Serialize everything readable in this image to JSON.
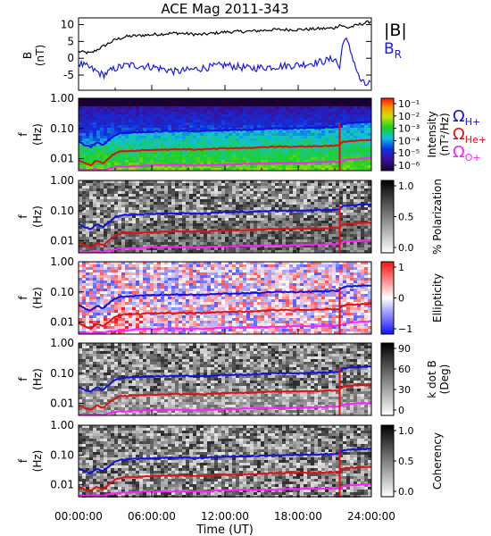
{
  "title": "ACE Mag 2011-343",
  "colors": {
    "B_total": "#000000",
    "B_R": "#1a1ae6",
    "omega_H": "#1010e0",
    "omega_He": "#e01010",
    "omega_O": "#ff20ff"
  },
  "chart_data": [
    {
      "type": "line",
      "ylabel": "B (nT)",
      "ylabel_parts": [
        "B",
        "(nT)"
      ],
      "yticks": [
        "10",
        "5",
        "0",
        "-5"
      ],
      "ylim": [
        -9.5,
        12
      ],
      "legend": [
        "|B|",
        "B_R"
      ],
      "legend_labels": {
        "total": "|B|",
        "radial_main": "B",
        "radial_sub": "R"
      },
      "x_hours": [
        0,
        1,
        2,
        3,
        4,
        6,
        8,
        10,
        12,
        14,
        16,
        18,
        20,
        21,
        21.4,
        21.7,
        22,
        22.5,
        23,
        23.5,
        24
      ],
      "series": [
        {
          "name": "|B|",
          "values": [
            2,
            1.5,
            3.5,
            5.5,
            6.5,
            7,
            7.5,
            7,
            7.8,
            8,
            8.5,
            8.5,
            8.8,
            9,
            10,
            9.5,
            9,
            9.5,
            10,
            10.5,
            11
          ]
        },
        {
          "name": "B_R",
          "values": [
            -1.5,
            -3,
            -5,
            -3,
            -2,
            -2.5,
            -4,
            -3,
            -2,
            -3,
            -2.5,
            -2,
            -1,
            0,
            -3,
            6,
            5,
            0,
            -6,
            -8,
            -7
          ]
        }
      ]
    },
    {
      "type": "heatmap",
      "ylabel": "f (Hz)",
      "ylabel_parts": [
        "f",
        "(Hz)"
      ],
      "yscale": "log",
      "ylim": [
        0.004,
        1.0
      ],
      "yticks": [
        "1.00",
        "0.10",
        "0.01"
      ],
      "colorbar_label": "Intensity (nT²/Hz)",
      "colorbar_label_parts": [
        "Intensity",
        "(nT²/Hz)"
      ],
      "colorbar_ticks": [
        "10⁻¹",
        "10⁻²",
        "10⁻³",
        "10⁻⁴",
        "10⁻⁵",
        "10⁻⁶"
      ],
      "legend": [
        {
          "main": "Ω",
          "sub": "H+"
        },
        {
          "main": "Ω",
          "sub": "He+"
        },
        {
          "main": "Ω",
          "sub": "O+"
        }
      ]
    },
    {
      "type": "heatmap",
      "ylabel": "f (Hz)",
      "ylabel_parts": [
        "f",
        "(Hz)"
      ],
      "yscale": "log",
      "yticks": [
        "1.00",
        "0.10",
        "0.01"
      ],
      "colorbar_label": "% Polarization",
      "colorbar_ticks": [
        "1.0",
        "0.5",
        "0.0"
      ]
    },
    {
      "type": "heatmap",
      "ylabel": "f (Hz)",
      "ylabel_parts": [
        "f",
        "(Hz)"
      ],
      "yscale": "log",
      "yticks": [
        "1.00",
        "0.10",
        "0.01"
      ],
      "colorbar_label": "Ellipticity",
      "colorbar_ticks": [
        "1",
        "0",
        "−1"
      ]
    },
    {
      "type": "heatmap",
      "ylabel": "f (Hz)",
      "ylabel_parts": [
        "f",
        "(Hz)"
      ],
      "yscale": "log",
      "yticks": [
        "1.00",
        "0.10",
        "0.01"
      ],
      "colorbar_label": "k dot B (Deg)",
      "colorbar_label_parts": [
        "k dot B",
        "(Deg)"
      ],
      "colorbar_ticks": [
        "90",
        "60",
        "30",
        "0"
      ]
    },
    {
      "type": "heatmap",
      "ylabel": "f (Hz)",
      "ylabel_parts": [
        "f",
        "(Hz)"
      ],
      "yscale": "log",
      "yticks": [
        "1.00",
        "0.10",
        "0.01"
      ],
      "colorbar_label": "Coherency",
      "colorbar_ticks": [
        "1.0",
        "0.5",
        "0.0"
      ]
    }
  ],
  "gyro_lines": {
    "x_hours": [
      0,
      0.5,
      1,
      1.5,
      2,
      2.5,
      3,
      3.5,
      4,
      6,
      8,
      10,
      12,
      14,
      16,
      18,
      20,
      21.4,
      21.6,
      22,
      24
    ],
    "omega_H_hz": [
      0.036,
      0.028,
      0.024,
      0.035,
      0.028,
      0.042,
      0.06,
      0.07,
      0.072,
      0.078,
      0.082,
      0.08,
      0.088,
      0.09,
      0.1,
      0.1,
      0.105,
      0.11,
      0.14,
      0.15,
      0.165
    ],
    "omega_He_hz": [
      0.009,
      0.007,
      0.006,
      0.0087,
      0.007,
      0.0105,
      0.015,
      0.0175,
      0.018,
      0.0195,
      0.0205,
      0.02,
      0.022,
      0.0225,
      0.025,
      0.025,
      0.026,
      0.0275,
      0.035,
      0.0375,
      0.041
    ],
    "omega_O_hz": [
      0.0045,
      0.0042,
      0.0042,
      0.0045,
      0.0042,
      0.0048,
      0.0052,
      0.0055,
      0.0055,
      0.006,
      0.0062,
      0.006,
      0.0065,
      0.0068,
      0.007,
      0.0072,
      0.0075,
      0.0078,
      0.0085,
      0.0095,
      0.0105
    ]
  },
  "x_axis": {
    "label": "Time (UT)",
    "ticks": [
      "00:00:00",
      "06:00:00",
      "12:00:00",
      "18:00:00",
      "24:00:00"
    ],
    "tick_hours": [
      0,
      6,
      12,
      18,
      24
    ],
    "xlim": [
      0,
      24
    ]
  }
}
